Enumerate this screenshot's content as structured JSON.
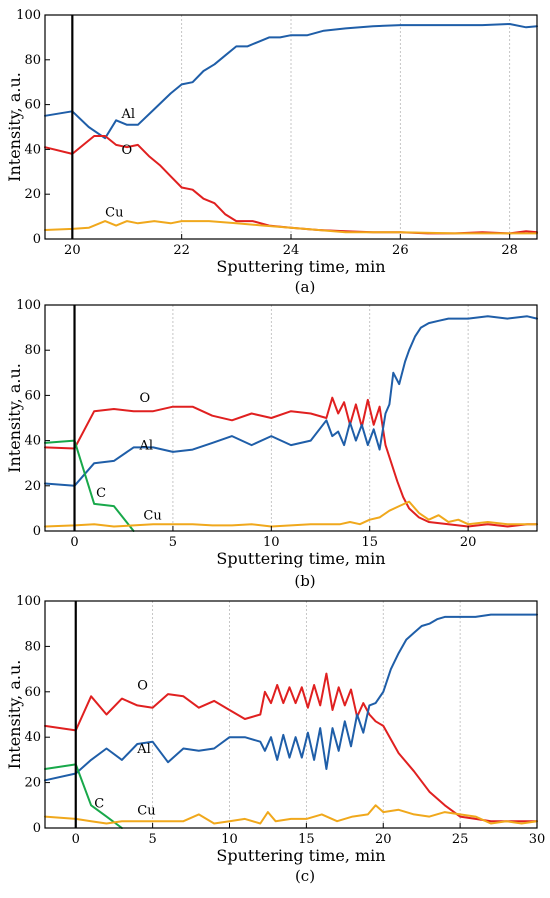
{
  "colors": {
    "Al": "#1f5ea8",
    "O": "#e02020",
    "Cu": "#f0a81c",
    "C": "#18a84a"
  },
  "chart_data": [
    {
      "type": "line",
      "panel_label": "(a)",
      "xlabel": "Sputtering time, min",
      "ylabel": "Intensity, a.u.",
      "xlim": [
        19.5,
        28.5
      ],
      "ylim": [
        0,
        100
      ],
      "xticks": [
        20,
        22,
        24,
        26,
        28
      ],
      "yticks": [
        0,
        20,
        40,
        60,
        80,
        100
      ],
      "grid": "vertical dotted",
      "series": [
        {
          "name": "Al",
          "color": "#1f5ea8",
          "label_at": [
            20.9,
            54
          ],
          "x": [
            19.5,
            20.0,
            20.3,
            20.6,
            20.8,
            21.0,
            21.2,
            21.5,
            21.8,
            22.0,
            22.2,
            22.4,
            22.6,
            22.8,
            23.0,
            23.2,
            23.4,
            23.6,
            23.8,
            24.0,
            24.3,
            24.6,
            25.0,
            25.5,
            26.0,
            26.5,
            27.0,
            27.5,
            28.0,
            28.3,
            28.5
          ],
          "y": [
            55,
            57,
            50,
            45,
            53,
            51,
            51,
            58,
            65,
            69,
            70,
            75,
            78,
            82,
            86,
            86,
            88,
            90,
            90,
            91,
            91,
            93,
            94,
            95,
            95.5,
            95.5,
            95.5,
            95.5,
            96,
            94.5,
            95
          ]
        },
        {
          "name": "O",
          "color": "#e02020",
          "label_at": [
            20.9,
            38
          ],
          "x": [
            19.5,
            20.0,
            20.2,
            20.4,
            20.6,
            20.8,
            21.0,
            21.2,
            21.4,
            21.6,
            21.8,
            22.0,
            22.2,
            22.4,
            22.6,
            22.8,
            23.0,
            23.3,
            23.6,
            24.0,
            24.5,
            25.0,
            25.5,
            26.0,
            26.5,
            27.0,
            27.5,
            28.0,
            28.3,
            28.5
          ],
          "y": [
            41,
            38,
            42,
            46,
            46,
            42,
            41,
            42,
            37,
            33,
            28,
            23,
            22,
            18,
            16,
            11,
            8,
            8,
            6,
            5,
            4,
            3.5,
            3,
            3,
            2.5,
            2.5,
            3,
            2.5,
            3.5,
            3
          ]
        },
        {
          "name": "Cu",
          "color": "#f0a81c",
          "label_at": [
            20.6,
            10
          ],
          "x": [
            19.5,
            20.0,
            20.3,
            20.6,
            20.8,
            21.0,
            21.2,
            21.5,
            21.8,
            22.0,
            22.5,
            23.0,
            23.5,
            24.0,
            25.0,
            26.0,
            27.0,
            28.0,
            28.5
          ],
          "y": [
            4,
            4.5,
            5,
            8,
            6,
            8,
            7,
            8,
            7,
            8,
            8,
            7,
            6,
            5,
            3,
            3,
            2.5,
            2.5,
            2.5
          ]
        }
      ]
    },
    {
      "type": "line",
      "panel_label": "(b)",
      "xlabel": "Sputtering time, min",
      "ylabel": "Intensity, a.u.",
      "xlim": [
        -1.5,
        23.5
      ],
      "ylim": [
        0,
        100
      ],
      "xticks": [
        0,
        5,
        10,
        15,
        20
      ],
      "yticks": [
        0,
        20,
        40,
        60,
        80,
        100
      ],
      "grid": "vertical dotted",
      "series": [
        {
          "name": "O",
          "color": "#e02020",
          "label_at": [
            3.3,
            57
          ],
          "x": [
            -1.5,
            0,
            1,
            2,
            3,
            4,
            5,
            6,
            7,
            8,
            9,
            10,
            11,
            12,
            12.8,
            13.1,
            13.4,
            13.7,
            14.0,
            14.3,
            14.6,
            14.9,
            15.2,
            15.5,
            15.8,
            16.1,
            16.4,
            16.7,
            17.0,
            17.5,
            18,
            19,
            20,
            21,
            22,
            23,
            23.5
          ],
          "y": [
            37,
            36.5,
            53,
            54,
            53,
            53,
            55,
            55,
            51,
            49,
            52,
            50,
            53,
            52,
            50,
            59,
            52,
            57,
            47,
            56,
            46,
            58,
            47,
            55,
            38,
            30,
            22,
            15,
            10,
            6,
            4,
            3,
            2,
            3,
            2,
            3,
            3
          ]
        },
        {
          "name": "Al",
          "color": "#1f5ea8",
          "label_at": [
            3.3,
            36
          ],
          "x": [
            -1.5,
            0,
            1,
            2,
            3,
            4,
            5,
            6,
            7,
            8,
            9,
            10,
            11,
            12,
            12.8,
            13.1,
            13.4,
            13.7,
            14.0,
            14.3,
            14.6,
            14.9,
            15.2,
            15.5,
            15.8,
            16.0,
            16.2,
            16.5,
            16.8,
            17.0,
            17.3,
            17.6,
            18.0,
            18.5,
            19,
            20,
            21,
            22,
            23,
            23.5
          ],
          "y": [
            21,
            20,
            30,
            31,
            37,
            37,
            35,
            36,
            39,
            42,
            38,
            42,
            38,
            40,
            49,
            42,
            44,
            38,
            48,
            40,
            47,
            38,
            45,
            36,
            52,
            56,
            70,
            65,
            75,
            80,
            86,
            90,
            92,
            93,
            94,
            94,
            95,
            94,
            95,
            94
          ]
        },
        {
          "name": "C",
          "color": "#18a84a",
          "label_at": [
            1.1,
            15
          ],
          "x": [
            -1.5,
            0,
            1,
            2,
            3
          ],
          "y": [
            39,
            40,
            12,
            11,
            0
          ]
        },
        {
          "name": "Cu",
          "color": "#f0a81c",
          "label_at": [
            3.5,
            5
          ],
          "x": [
            -1.5,
            0,
            1,
            2,
            3,
            4,
            5,
            6,
            7,
            8,
            9,
            10,
            11,
            12,
            13,
            13.5,
            14,
            14.5,
            15,
            15.5,
            16,
            16.5,
            17,
            17.5,
            18,
            18.5,
            19,
            19.5,
            20,
            21,
            22,
            23,
            23.5
          ],
          "y": [
            2,
            2.5,
            3,
            2,
            2.5,
            3,
            3,
            3,
            2.5,
            2.5,
            3,
            2,
            2.5,
            3,
            3,
            3,
            4,
            3,
            5,
            6,
            9,
            11,
            13,
            8,
            5,
            7,
            4,
            5,
            3,
            4,
            3,
            3,
            3
          ]
        }
      ]
    },
    {
      "type": "line",
      "panel_label": "(c)",
      "xlabel": "Sputtering time, min",
      "ylabel": "Intensity, a.u.",
      "xlim": [
        -2,
        30
      ],
      "ylim": [
        0,
        100
      ],
      "xticks": [
        0,
        5,
        10,
        15,
        20,
        25,
        30
      ],
      "yticks": [
        0,
        20,
        40,
        60,
        80,
        100
      ],
      "grid": "vertical dotted",
      "series": [
        {
          "name": "O",
          "color": "#e02020",
          "label_at": [
            4.0,
            61
          ],
          "x": [
            -2,
            0,
            1,
            2,
            3,
            4,
            5,
            6,
            7,
            8,
            9,
            10,
            11,
            12,
            12.3,
            12.7,
            13.1,
            13.5,
            13.9,
            14.3,
            14.7,
            15.1,
            15.5,
            15.9,
            16.3,
            16.7,
            17.1,
            17.5,
            17.9,
            18.3,
            18.7,
            19.1,
            19.5,
            20,
            21,
            22,
            23,
            24,
            25,
            26,
            27,
            28,
            29,
            30
          ],
          "y": [
            45,
            43,
            58,
            50,
            57,
            54,
            53,
            59,
            58,
            53,
            56,
            52,
            48,
            50,
            60,
            55,
            63,
            55,
            62,
            55,
            62,
            53,
            63,
            54,
            68,
            52,
            62,
            54,
            61,
            49,
            55,
            50,
            47,
            45,
            33,
            25,
            16,
            10,
            5,
            4,
            3,
            3,
            3,
            3
          ]
        },
        {
          "name": "Al",
          "color": "#1f5ea8",
          "label_at": [
            4.0,
            33
          ],
          "x": [
            -2,
            0,
            1,
            2,
            3,
            4,
            5,
            6,
            7,
            8,
            9,
            10,
            11,
            12,
            12.3,
            12.7,
            13.1,
            13.5,
            13.9,
            14.3,
            14.7,
            15.1,
            15.5,
            15.9,
            16.3,
            16.7,
            17.1,
            17.5,
            17.9,
            18.3,
            18.7,
            19.1,
            19.5,
            20,
            20.5,
            21,
            21.5,
            22,
            22.5,
            23,
            23.5,
            24,
            25,
            26,
            27,
            28,
            29,
            30
          ],
          "y": [
            21,
            24,
            30,
            35,
            30,
            37,
            38,
            29,
            35,
            34,
            35,
            40,
            40,
            38,
            34,
            40,
            30,
            41,
            31,
            40,
            31,
            42,
            30,
            44,
            26,
            44,
            34,
            47,
            36,
            50,
            42,
            54,
            55,
            60,
            70,
            77,
            83,
            86,
            89,
            90,
            92,
            93,
            93,
            93,
            94,
            94,
            94,
            94
          ]
        },
        {
          "name": "C",
          "color": "#18a84a",
          "label_at": [
            1.2,
            9
          ],
          "x": [
            -2,
            0,
            1,
            2,
            3
          ],
          "y": [
            26,
            28,
            10,
            5,
            0
          ]
        },
        {
          "name": "Cu",
          "color": "#f0a81c",
          "label_at": [
            4.0,
            6
          ],
          "x": [
            -2,
            0,
            1,
            2,
            3,
            4,
            5,
            6,
            7,
            8,
            9,
            10,
            11,
            12,
            12.5,
            13,
            14,
            15,
            16,
            17,
            18,
            19,
            19.5,
            20,
            21,
            22,
            23,
            24,
            25,
            26,
            27,
            28,
            29,
            30
          ],
          "y": [
            5,
            4,
            3,
            2,
            3,
            3,
            3,
            3,
            3,
            6,
            2,
            3,
            4,
            2,
            7,
            3,
            4,
            4,
            6,
            3,
            5,
            6,
            10,
            7,
            8,
            6,
            5,
            7,
            6,
            5,
            2,
            3,
            2,
            3
          ]
        }
      ]
    }
  ]
}
